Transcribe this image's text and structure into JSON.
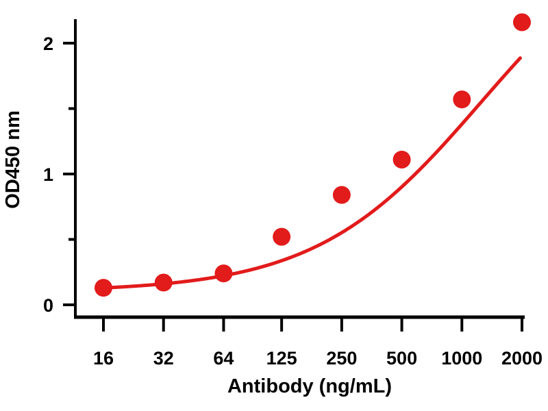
{
  "chart_data": {
    "type": "scatter",
    "title": "",
    "xlabel": "Antibody (ng/mL)",
    "ylabel": "OD450 nm",
    "x_scale": "log2",
    "x_ticks": [
      16,
      32,
      64,
      125,
      250,
      500,
      1000,
      2000
    ],
    "x_tick_labels": [
      "16",
      "32",
      "64",
      "125",
      "250",
      "500",
      "1000",
      "2000"
    ],
    "y_ticks": [
      0,
      1,
      2
    ],
    "y_tick_labels": [
      "0",
      "1",
      "2"
    ],
    "y_minor_ticks": [
      0.5,
      1.5
    ],
    "ylim": [
      -0.05,
      2.2
    ],
    "grid": false,
    "legend": "none",
    "series": [
      {
        "x": [
          16,
          32,
          64,
          125,
          250,
          500,
          1000,
          2000
        ],
        "y": [
          0.13,
          0.17,
          0.24,
          0.52,
          0.84,
          1.11,
          1.57,
          2.16
        ],
        "color": "#e21b1b",
        "fit_curve": "sigmoidal"
      }
    ]
  }
}
